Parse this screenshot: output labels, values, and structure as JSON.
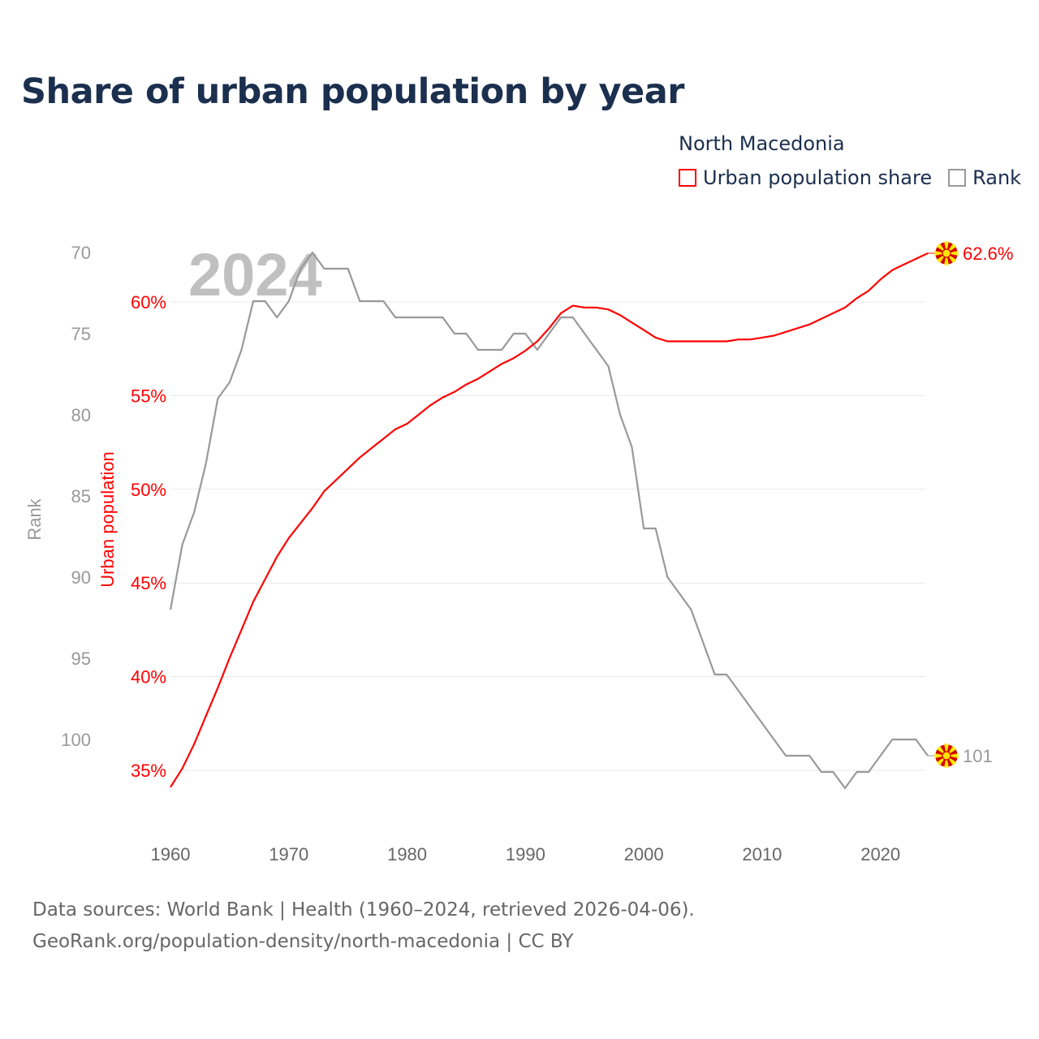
{
  "title": "Share of urban population by year",
  "legend": {
    "title": "North Macedonia",
    "items": [
      {
        "label": "Urban population share",
        "color": "#ff0000"
      },
      {
        "label": "Rank",
        "color": "#999999"
      }
    ]
  },
  "footer": {
    "line1": "Data sources: World Bank | Health (1960–2024, retrieved 2026-04-06).",
    "line2": "GeoRank.org/population-density/north-macedonia | CC BY"
  },
  "chart_data": {
    "type": "line",
    "title": "Share of urban population by year",
    "watermark_year": "2024",
    "xlabel": "",
    "x": [
      1960,
      1961,
      1962,
      1963,
      1964,
      1965,
      1966,
      1967,
      1968,
      1969,
      1970,
      1971,
      1972,
      1973,
      1974,
      1975,
      1976,
      1977,
      1978,
      1979,
      1980,
      1981,
      1982,
      1983,
      1984,
      1985,
      1986,
      1987,
      1988,
      1989,
      1990,
      1991,
      1992,
      1993,
      1994,
      1995,
      1996,
      1997,
      1998,
      1999,
      2000,
      2001,
      2002,
      2003,
      2004,
      2005,
      2006,
      2007,
      2008,
      2009,
      2010,
      2011,
      2012,
      2013,
      2014,
      2015,
      2016,
      2017,
      2018,
      2019,
      2020,
      2021,
      2022,
      2023,
      2024
    ],
    "xlim": [
      1960,
      2024
    ],
    "xticks": [
      1960,
      1970,
      1980,
      1990,
      2000,
      2010,
      2020
    ],
    "series": [
      {
        "name": "Urban population share",
        "axis": "left-inner",
        "ylabel": "Urban population",
        "color": "#ff0000",
        "ylim": [
          34,
          63.5
        ],
        "yticks": [
          35,
          40,
          45,
          50,
          55,
          60
        ],
        "ytick_labels": [
          "35%",
          "40%",
          "45%",
          "50%",
          "55%",
          "60%"
        ],
        "end_label": "62.6%",
        "values": [
          34.1,
          35.1,
          36.4,
          37.9,
          39.4,
          41.0,
          42.5,
          44.0,
          45.2,
          46.4,
          47.4,
          48.2,
          49.0,
          49.9,
          50.5,
          51.1,
          51.7,
          52.2,
          52.7,
          53.2,
          53.5,
          54.0,
          54.5,
          54.9,
          55.2,
          55.6,
          55.9,
          56.3,
          56.7,
          57.0,
          57.4,
          57.9,
          58.6,
          59.4,
          59.8,
          59.7,
          59.7,
          59.6,
          59.3,
          58.9,
          58.5,
          58.1,
          57.9,
          57.9,
          57.9,
          57.9,
          57.9,
          57.9,
          58.0,
          58.0,
          58.1,
          58.2,
          58.4,
          58.6,
          58.8,
          59.1,
          59.4,
          59.7,
          60.2,
          60.6,
          61.2,
          61.7,
          62.0,
          62.3,
          62.6
        ]
      },
      {
        "name": "Rank",
        "axis": "left-outer",
        "ylabel": "Rank",
        "color": "#999999",
        "inverted": true,
        "ylim": [
          70,
          103
        ],
        "yticks": [
          70,
          75,
          80,
          85,
          90,
          95,
          100
        ],
        "ytick_labels": [
          "70",
          "75",
          "80",
          "85",
          "90",
          "95",
          "100"
        ],
        "end_label": "101",
        "values": [
          92,
          88,
          86,
          83,
          79,
          78,
          76,
          73,
          73,
          74,
          73,
          71,
          70,
          71,
          71,
          71,
          73,
          73,
          73,
          74,
          74,
          74,
          74,
          74,
          75,
          75,
          76,
          76,
          76,
          75,
          75,
          76,
          75,
          74,
          74,
          75,
          76,
          77,
          80,
          82,
          87,
          87,
          90,
          91,
          92,
          94,
          96,
          96,
          97,
          98,
          99,
          100,
          101,
          101,
          101,
          102,
          102,
          103,
          102,
          102,
          101,
          100,
          100,
          100,
          101
        ]
      }
    ],
    "grid": true,
    "legend_position": "top-right"
  }
}
